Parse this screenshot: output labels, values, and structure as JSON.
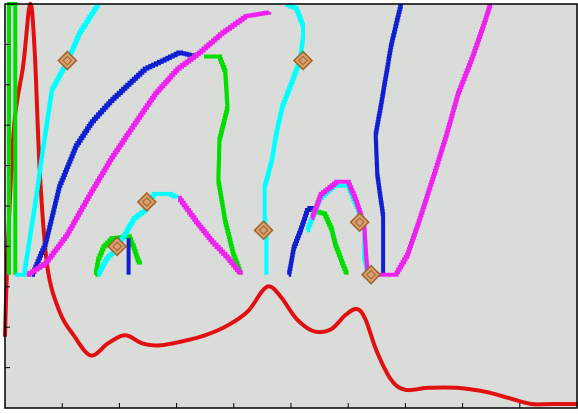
{
  "chart_data": {
    "type": "line",
    "title": "",
    "xlabel": "",
    "ylabel": "",
    "xlim": [
      0,
      100
    ],
    "ylim": [
      0,
      100
    ],
    "grid": false,
    "legend": "none",
    "x_ticks": [
      0,
      10,
      20,
      30,
      40,
      50,
      60,
      70,
      80,
      90,
      100
    ],
    "y_ticks": [
      0,
      10,
      20,
      30,
      40,
      50,
      60,
      70,
      80,
      90,
      100
    ],
    "background_color": "#d9dcd9",
    "series": [
      {
        "color": "#e01010",
        "style": "smooth",
        "points": [
          [
            0,
            18
          ],
          [
            0.5,
            40
          ],
          [
            1.6,
            70
          ],
          [
            3.2,
            85
          ],
          [
            4.4,
            100
          ],
          [
            5.2,
            88
          ],
          [
            6.1,
            58
          ],
          [
            7.4,
            35
          ],
          [
            9.5,
            24
          ],
          [
            12,
            18
          ],
          [
            15,
            13
          ],
          [
            18,
            16
          ],
          [
            21,
            18
          ],
          [
            24,
            16
          ],
          [
            27,
            15.5
          ],
          [
            31,
            16.5
          ],
          [
            35,
            18
          ],
          [
            39,
            20.5
          ],
          [
            42.5,
            24
          ],
          [
            45,
            29
          ],
          [
            46.5,
            30
          ],
          [
            48.5,
            27
          ],
          [
            51,
            22
          ],
          [
            54,
            19
          ],
          [
            57,
            19.5
          ],
          [
            59.5,
            23
          ],
          [
            61.5,
            24.5
          ],
          [
            63,
            22
          ],
          [
            65,
            14
          ],
          [
            67.5,
            7
          ],
          [
            70,
            4.5
          ],
          [
            74,
            5
          ],
          [
            79,
            5
          ],
          [
            84,
            4
          ],
          [
            88,
            2.5
          ],
          [
            92,
            1
          ],
          [
            96,
            1
          ],
          [
            100,
            1
          ]
        ]
      },
      {
        "color": "#00dd00",
        "style": "step",
        "points": [
          [
            0.7,
            33
          ],
          [
            0.7,
            100
          ],
          [
            1.8,
            100
          ],
          [
            1.8,
            33
          ]
        ]
      },
      {
        "color": "#00dd00",
        "style": "step",
        "points": [
          [
            15.8,
            33
          ],
          [
            16.3,
            37
          ],
          [
            17.2,
            40
          ],
          [
            18.6,
            42
          ],
          [
            21.6,
            42.5
          ],
          [
            22.5,
            39.5
          ],
          [
            23.2,
            36.5
          ],
          [
            23.6,
            35.5
          ]
        ]
      },
      {
        "color": "#00dd00",
        "style": "step",
        "points": [
          [
            34.8,
            87
          ],
          [
            37.4,
            87
          ],
          [
            38.5,
            83
          ],
          [
            38.9,
            74
          ],
          [
            37.5,
            66
          ],
          [
            37.3,
            56
          ],
          [
            38.5,
            46
          ],
          [
            39.9,
            38
          ],
          [
            41.2,
            33
          ]
        ]
      },
      {
        "color": "#00dd00",
        "style": "step",
        "points": [
          [
            53.5,
            49
          ],
          [
            55.8,
            48
          ],
          [
            57.1,
            44
          ],
          [
            57.8,
            40
          ],
          [
            59.7,
            33
          ]
        ]
      },
      {
        "color": "#00ffff",
        "style": "step",
        "points": [
          [
            1.8,
            33
          ],
          [
            3.3,
            33
          ],
          [
            5.4,
            52
          ],
          [
            6.6,
            64
          ],
          [
            8.2,
            79
          ],
          [
            10.9,
            86
          ],
          [
            13,
            93
          ],
          [
            16.2,
            100
          ]
        ]
      },
      {
        "color": "#00ffff",
        "style": "step",
        "points": [
          [
            16.2,
            33
          ],
          [
            17.7,
            37
          ],
          [
            19.6,
            40
          ],
          [
            22.5,
            47
          ],
          [
            24.4,
            49
          ],
          [
            26,
            53
          ],
          [
            28.5,
            53
          ],
          [
            30,
            52
          ]
        ]
      },
      {
        "color": "#00ffff",
        "style": "step",
        "points": [
          [
            45.7,
            33
          ],
          [
            45.7,
            42
          ],
          [
            45.4,
            48
          ],
          [
            45.4,
            55
          ],
          [
            46.7,
            62
          ],
          [
            47.4,
            68
          ],
          [
            48.5,
            75
          ],
          [
            49.9,
            80
          ],
          [
            51.5,
            86
          ],
          [
            52.1,
            92
          ],
          [
            52.1,
            95
          ],
          [
            51,
            99
          ],
          [
            49.4,
            100
          ]
        ]
      },
      {
        "color": "#00ffff",
        "style": "step",
        "points": [
          [
            52.8,
            44
          ],
          [
            55,
            52
          ],
          [
            57.4,
            55
          ],
          [
            59.9,
            55
          ],
          [
            61.7,
            49
          ],
          [
            62.8,
            44
          ],
          [
            62.8,
            37
          ],
          [
            63.4,
            33
          ]
        ]
      },
      {
        "color": "#1020d0",
        "style": "step",
        "points": [
          [
            4.7,
            33
          ],
          [
            7.1,
            41
          ],
          [
            9.5,
            55
          ],
          [
            12.4,
            65
          ],
          [
            15.2,
            71
          ],
          [
            18.4,
            76
          ],
          [
            21.4,
            80
          ],
          [
            24.4,
            84
          ],
          [
            27.4,
            86
          ],
          [
            30.3,
            88
          ],
          [
            33.2,
            87
          ]
        ]
      },
      {
        "color": "#1020d0",
        "style": "step",
        "points": [
          [
            21.6,
            33
          ],
          [
            21.6,
            42
          ]
        ]
      },
      {
        "color": "#1020d0",
        "style": "step",
        "points": [
          [
            49.6,
            33
          ],
          [
            50.5,
            40
          ],
          [
            51.6,
            44
          ],
          [
            52.8,
            49
          ],
          [
            53.6,
            50
          ]
        ]
      },
      {
        "color": "#1020d0",
        "style": "step",
        "points": [
          [
            66.1,
            33
          ],
          [
            66.1,
            48
          ],
          [
            65.1,
            58
          ],
          [
            64.8,
            68
          ],
          [
            65.7,
            75
          ],
          [
            66.9,
            85
          ],
          [
            67.5,
            90
          ],
          [
            68.5,
            96
          ],
          [
            69.2,
            100
          ]
        ]
      },
      {
        "color": "#ee22ee",
        "style": "step",
        "points": [
          [
            3.8,
            33
          ],
          [
            7.1,
            36
          ],
          [
            10.8,
            43
          ],
          [
            14.8,
            53
          ],
          [
            18.6,
            62
          ],
          [
            22.4,
            70
          ],
          [
            26.3,
            78
          ],
          [
            30.1,
            84
          ],
          [
            33.9,
            88
          ],
          [
            38,
            93
          ],
          [
            42,
            97
          ],
          [
            46.2,
            98
          ]
        ]
      },
      {
        "color": "#ee22ee",
        "style": "step",
        "points": [
          [
            30.3,
            52
          ],
          [
            33.4,
            46
          ],
          [
            36.2,
            41
          ],
          [
            38.9,
            37
          ],
          [
            41.2,
            33
          ]
        ]
      },
      {
        "color": "#ee22ee",
        "style": "step",
        "points": [
          [
            53.6,
            47
          ],
          [
            55.2,
            53
          ],
          [
            57.9,
            56
          ],
          [
            59.9,
            56
          ],
          [
            61.4,
            51
          ],
          [
            62.8,
            45
          ],
          [
            63.1,
            38
          ],
          [
            63.4,
            33
          ],
          [
            68.2,
            33
          ],
          [
            70.3,
            38
          ],
          [
            72.5,
            47
          ],
          [
            75,
            58
          ],
          [
            77.2,
            68
          ],
          [
            79.2,
            78
          ],
          [
            81.7,
            87
          ],
          [
            83.9,
            96
          ],
          [
            84.8,
            100
          ]
        ]
      }
    ],
    "markers": [
      [
        10.9,
        86
      ],
      [
        19.6,
        40
      ],
      [
        24.8,
        51
      ],
      [
        45.2,
        44
      ],
      [
        52.1,
        86
      ],
      [
        62,
        46
      ],
      [
        64,
        33
      ]
    ],
    "marker_style": {
      "shape": "diamond",
      "fill": "#d6a070",
      "edge": "#a0622a"
    }
  }
}
